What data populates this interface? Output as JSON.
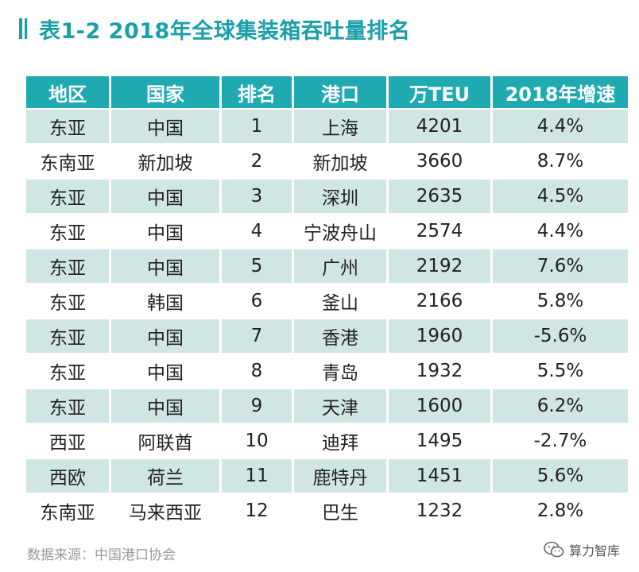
{
  "header": {
    "title": "表1-2  2018年全球集装箱吞吐量排名"
  },
  "table": {
    "columns": [
      "地区",
      "国家",
      "排名",
      "港口",
      "万TEU",
      "2018年增速"
    ],
    "rows": [
      [
        "东亚",
        "中国",
        "1",
        "上海",
        "4201",
        "4.4%"
      ],
      [
        "东南亚",
        "新加坡",
        "2",
        "新加坡",
        "3660",
        "8.7%"
      ],
      [
        "东亚",
        "中国",
        "3",
        "深圳",
        "2635",
        "4.5%"
      ],
      [
        "东亚",
        "中国",
        "4",
        "宁波舟山",
        "2574",
        "4.4%"
      ],
      [
        "东亚",
        "中国",
        "5",
        "广州",
        "2192",
        "7.6%"
      ],
      [
        "东亚",
        "韩国",
        "6",
        "釜山",
        "2166",
        "5.8%"
      ],
      [
        "东亚",
        "中国",
        "7",
        "香港",
        "1960",
        "-5.6%"
      ],
      [
        "东亚",
        "中国",
        "8",
        "青岛",
        "1932",
        "5.5%"
      ],
      [
        "东亚",
        "中国",
        "9",
        "天津",
        "1600",
        "6.2%"
      ],
      [
        "西亚",
        "阿联酋",
        "10",
        "迪拜",
        "1495",
        "-2.7%"
      ],
      [
        "西欧",
        "荷兰",
        "11",
        "鹿特丹",
        "1451",
        "5.6%"
      ],
      [
        "东南亚",
        "马来西亚",
        "12",
        "巴生",
        "1232",
        "2.8%"
      ]
    ]
  },
  "footer": {
    "source": "数据来源：中国港口协会",
    "brand": "算力智库",
    "brand_icon": "wechat-icon"
  },
  "colors": {
    "accent": "#1a9fa8",
    "header_bg": "#1fa9b1",
    "stripe": "#cfe6e5"
  }
}
